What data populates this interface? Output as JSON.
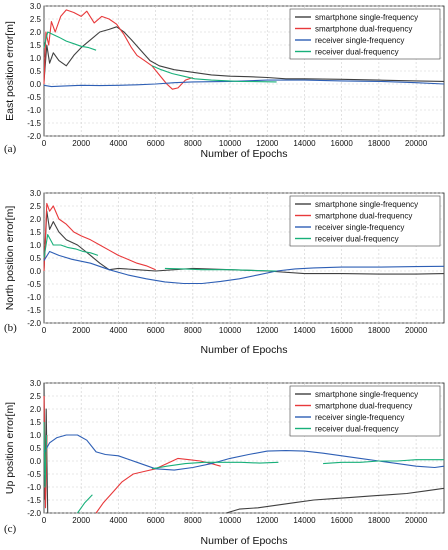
{
  "colors": {
    "smartphone_single": "#404040",
    "smartphone_dual": "#e8393b",
    "receiver_single": "#2e5fb5",
    "receiver_dual": "#18b07a"
  },
  "chart_data": [
    {
      "type": "line",
      "panel_label": "(a)",
      "xlabel": "Number of Epochs",
      "ylabel": "East position error[m]",
      "xlim": [
        0,
        21500
      ],
      "ylim": [
        -2.0,
        3.0
      ],
      "xticks": [
        "0",
        "2000",
        "4000",
        "6000",
        "8000",
        "10000",
        "12000",
        "14000",
        "16000",
        "18000",
        "20000"
      ],
      "yticks": [
        "3.0",
        "2.5",
        "2.0",
        "1.5",
        "1.0",
        "0.5",
        "0.0",
        "-0.5",
        "-1.0",
        "-1.5",
        "-2.0"
      ],
      "grid": true,
      "legend_position": "top-right",
      "series": [
        {
          "name": "smartphone single-frequency",
          "color_key": "smartphone_single",
          "x": [
            0,
            150,
            300,
            500,
            800,
            1200,
            1600,
            2000,
            2500,
            3000,
            3500,
            3900,
            4300,
            4700,
            5200,
            5700,
            6200,
            7000,
            8000,
            9000,
            10000,
            11000,
            12000,
            13000,
            14000,
            16000,
            18000,
            20000,
            21500
          ],
          "y": [
            0.1,
            1.5,
            0.8,
            1.2,
            0.9,
            0.7,
            1.1,
            1.4,
            1.7,
            2.0,
            2.1,
            2.2,
            2.0,
            1.7,
            1.3,
            0.9,
            0.7,
            0.55,
            0.45,
            0.35,
            0.3,
            0.28,
            0.25,
            0.2,
            0.2,
            0.18,
            0.15,
            0.12,
            0.1
          ]
        },
        {
          "name": "smartphone dual-frequency",
          "color_key": "smartphone_dual",
          "x": [
            0,
            100,
            250,
            400,
            600,
            900,
            1200,
            1600,
            2000,
            2300,
            2700,
            3100,
            3500,
            3900,
            4300,
            4700,
            5000,
            5400,
            5800,
            6200,
            6600,
            6900,
            7200,
            7600,
            8000
          ],
          "y": [
            0.0,
            2.0,
            1.5,
            2.4,
            2.0,
            2.6,
            2.85,
            2.75,
            2.6,
            2.8,
            2.35,
            2.6,
            2.5,
            2.3,
            1.9,
            1.4,
            1.1,
            0.9,
            0.7,
            0.35,
            0.0,
            -0.2,
            -0.15,
            0.15,
            0.25
          ]
        },
        {
          "name": "receiver single-frequency",
          "color_key": "receiver_single",
          "x": [
            0,
            400,
            1000,
            2000,
            3000,
            4000,
            5000,
            6000,
            7000,
            8000,
            10000,
            12000,
            14000,
            16000,
            18000,
            20000,
            21500
          ],
          "y": [
            -0.05,
            -0.1,
            -0.08,
            -0.05,
            -0.06,
            -0.05,
            -0.03,
            0.0,
            0.05,
            0.08,
            0.1,
            0.15,
            0.15,
            0.12,
            0.1,
            0.05,
            0.0
          ]
        },
        {
          "name": "receiver dual-frequency",
          "color_key": "receiver_dual",
          "x": [
            0,
            200,
            500,
            800,
            1200,
            1600,
            2000,
            2400,
            2800,
            null,
            5800,
            6300,
            6900,
            7500,
            8100,
            9000,
            10500,
            12500
          ],
          "y": [
            1.4,
            2.0,
            1.9,
            1.8,
            1.65,
            1.55,
            1.45,
            1.4,
            1.3,
            null,
            0.7,
            0.55,
            0.4,
            0.3,
            0.2,
            0.15,
            0.1,
            0.08
          ]
        }
      ]
    },
    {
      "type": "line",
      "panel_label": "(b)",
      "xlabel": "Number of Epochs",
      "ylabel": "North position error[m]",
      "xlim": [
        0,
        21500
      ],
      "ylim": [
        -2.0,
        3.0
      ],
      "xticks": [
        "0",
        "2000",
        "4000",
        "6000",
        "8000",
        "10000",
        "12000",
        "14000",
        "16000",
        "18000",
        "20000"
      ],
      "yticks": [
        "3.0",
        "2.5",
        "2.0",
        "1.5",
        "1.0",
        "0.5",
        "0.0",
        "-0.5",
        "-1.0",
        "-1.5",
        "-2.0"
      ],
      "grid": true,
      "legend_position": "top-right",
      "series": [
        {
          "name": "smartphone single-frequency",
          "color_key": "smartphone_single",
          "x": [
            0,
            150,
            300,
            500,
            800,
            1200,
            1800,
            2500,
            3000,
            3500,
            4000,
            5000,
            6000,
            7000,
            8000,
            10000,
            12000,
            14000,
            16000,
            18000,
            20000,
            21500
          ],
          "y": [
            0.0,
            2.3,
            1.6,
            1.9,
            1.5,
            1.2,
            1.0,
            0.6,
            0.3,
            0.05,
            0.1,
            0.05,
            0.0,
            0.05,
            0.1,
            0.05,
            0.0,
            -0.1,
            -0.1,
            -0.12,
            -0.12,
            -0.1
          ]
        },
        {
          "name": "smartphone dual-frequency",
          "color_key": "smartphone_dual",
          "x": [
            0,
            150,
            300,
            500,
            800,
            1200,
            1600,
            2000,
            2500,
            3000,
            3500,
            4000,
            4500,
            5000,
            5500,
            6000
          ],
          "y": [
            0.0,
            2.6,
            2.3,
            2.5,
            2.0,
            1.8,
            1.5,
            1.35,
            1.2,
            1.0,
            0.8,
            0.6,
            0.45,
            0.3,
            0.2,
            0.05
          ]
        },
        {
          "name": "receiver single-frequency",
          "color_key": "receiver_single",
          "x": [
            0,
            300,
            800,
            1500,
            2500,
            3500,
            4500,
            5500,
            6500,
            7500,
            8500,
            9500,
            10500,
            11500,
            12500,
            13500,
            14500,
            16000,
            18000,
            20000,
            21500
          ],
          "y": [
            0.4,
            0.75,
            0.6,
            0.45,
            0.3,
            0.05,
            -0.15,
            -0.3,
            -0.42,
            -0.48,
            -0.48,
            -0.4,
            -0.3,
            -0.15,
            0.0,
            0.08,
            0.12,
            0.15,
            0.15,
            0.17,
            0.18
          ]
        },
        {
          "name": "receiver dual-frequency",
          "color_key": "receiver_dual",
          "x": [
            0,
            200,
            500,
            900,
            1300,
            1700,
            2100,
            2500,
            2900,
            null,
            6500,
            7500,
            8500,
            10000,
            11500,
            12500
          ],
          "y": [
            0.5,
            1.4,
            1.0,
            1.0,
            0.9,
            0.85,
            0.75,
            0.7,
            0.6,
            null,
            0.1,
            0.08,
            0.05,
            0.05,
            0.02,
            0.0
          ]
        }
      ]
    },
    {
      "type": "line",
      "panel_label": "(c)",
      "xlabel": "Number of Epochs",
      "ylabel": "Up position error[m]",
      "xlim": [
        0,
        21500
      ],
      "ylim": [
        -2.0,
        3.0
      ],
      "xticks": [
        "0",
        "2000",
        "4000",
        "6000",
        "8000",
        "10000",
        "12000",
        "14000",
        "16000",
        "18000",
        "20000"
      ],
      "yticks": [
        "3.0",
        "2.5",
        "2.0",
        "1.5",
        "1.0",
        "0.5",
        "0.0",
        "-0.5",
        "-1.0",
        "-1.5",
        "-2.0"
      ],
      "grid": true,
      "legend_position": "top-right",
      "series": [
        {
          "name": "smartphone single-frequency",
          "color_key": "smartphone_single",
          "x": [
            0,
            60,
            120,
            200,
            null,
            9800,
            10500,
            11500,
            12500,
            13500,
            14500,
            15500,
            16500,
            17500,
            18500,
            19500,
            20500,
            21500
          ],
          "y": [
            3.0,
            -1.5,
            2.0,
            -2.0,
            null,
            -2.0,
            -1.85,
            -1.8,
            -1.7,
            -1.6,
            -1.5,
            -1.45,
            -1.4,
            -1.35,
            -1.3,
            -1.25,
            -1.15,
            -1.05
          ]
        },
        {
          "name": "smartphone dual-frequency",
          "color_key": "smartphone_dual",
          "x": [
            0,
            80,
            160,
            null,
            2800,
            3200,
            3700,
            4200,
            4800,
            5400,
            6000,
            6600,
            7200,
            7800,
            8400,
            9000,
            9500
          ],
          "y": [
            2.5,
            -1.8,
            1.0,
            null,
            -2.0,
            -1.6,
            -1.2,
            -0.8,
            -0.5,
            -0.4,
            -0.3,
            -0.1,
            0.1,
            0.05,
            0.0,
            -0.1,
            -0.2
          ]
        },
        {
          "name": "receiver single-frequency",
          "color_key": "receiver_single",
          "x": [
            0,
            300,
            700,
            1200,
            1800,
            2300,
            2800,
            3300,
            4000,
            5000,
            6000,
            7000,
            8000,
            9000,
            10000,
            11000,
            12000,
            13000,
            14000,
            15000,
            16000,
            17000,
            18000,
            19000,
            20000,
            21000,
            21500
          ],
          "y": [
            0.3,
            0.7,
            0.9,
            1.0,
            1.0,
            0.8,
            0.35,
            0.25,
            0.2,
            -0.05,
            -0.3,
            -0.35,
            -0.25,
            -0.1,
            0.1,
            0.25,
            0.38,
            0.4,
            0.38,
            0.3,
            0.2,
            0.1,
            0.0,
            -0.1,
            -0.2,
            -0.25,
            -0.2
          ]
        },
        {
          "name": "receiver dual-frequency",
          "color_key": "receiver_dual",
          "x": [
            0,
            60,
            140,
            null,
            1800,
            2200,
            2600,
            null,
            5800,
            6600,
            7600,
            8600,
            9600,
            10600,
            11600,
            12600,
            null,
            15000,
            16000,
            17000,
            18000,
            19000,
            20000,
            21500
          ],
          "y": [
            1.5,
            -1.0,
            1.0,
            null,
            -2.0,
            -1.6,
            -1.3,
            null,
            -0.3,
            -0.2,
            -0.1,
            -0.05,
            -0.05,
            -0.05,
            -0.08,
            -0.05,
            null,
            -0.1,
            -0.05,
            -0.05,
            0.0,
            0.0,
            0.05,
            0.05
          ]
        }
      ]
    }
  ]
}
